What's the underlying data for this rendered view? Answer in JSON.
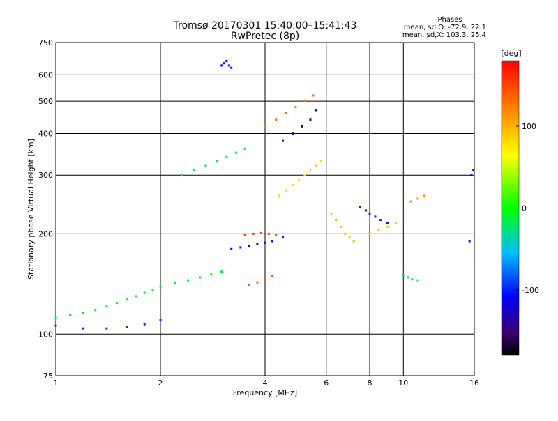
{
  "header": {
    "title_line1": "Tromsø 20170301 15:40:00–15:41:43",
    "title_line2": "RwPretec (8p)",
    "stats_heading": "Phases",
    "stats_line1": "mean, sd,O: -72.9, 22.1",
    "stats_line2": "mean, sd,X: 103.3, 25.4"
  },
  "chart_data": {
    "type": "scatter",
    "xlabel": "Frequency [MHz]",
    "ylabel": "Stationary phase Virtual Height [km]",
    "x_scale": "log",
    "y_scale": "log",
    "xlim": [
      1,
      16
    ],
    "ylim": [
      75,
      750
    ],
    "x_ticks": [
      1,
      2,
      4,
      6,
      8,
      10,
      16
    ],
    "y_ticks": [
      75,
      100,
      200,
      300,
      400,
      500,
      600,
      750
    ],
    "grid": true,
    "colorbar": {
      "label": "[deg]",
      "range": [
        -180,
        180
      ],
      "ticks": [
        100,
        0,
        -100
      ],
      "colormap": "rainbow"
    },
    "traces": [
      {
        "name": "",
        "phase": -10,
        "x": [
          1.0,
          1.1,
          1.2,
          1.3,
          1.4,
          1.5,
          1.6,
          1.7,
          1.8,
          1.9,
          2.0,
          2.2,
          2.4,
          2.6,
          2.8,
          3.0
        ],
        "y": [
          112,
          114,
          116,
          118,
          121,
          124,
          127,
          130,
          133,
          136,
          139,
          142,
          145,
          148,
          151,
          154
        ]
      },
      {
        "name": "",
        "phase": -95,
        "x": [
          1.0,
          1.2,
          1.4,
          1.6,
          1.8,
          2.0
        ],
        "y": [
          106,
          104,
          104,
          105,
          107,
          110
        ]
      },
      {
        "name": "",
        "phase": -20,
        "x": [
          2.3,
          2.5,
          2.7,
          2.9,
          3.1,
          3.3,
          3.5
        ],
        "y": [
          300,
          310,
          320,
          330,
          340,
          350,
          360
        ]
      },
      {
        "name": "",
        "phase": -110,
        "x": [
          3.0,
          3.05,
          3.1,
          3.15,
          3.2
        ],
        "y": [
          640,
          650,
          660,
          640,
          630
        ]
      },
      {
        "name": "",
        "phase": -105,
        "x": [
          3.2,
          3.4,
          3.6,
          3.8,
          4.0,
          4.2,
          4.5
        ],
        "y": [
          180,
          182,
          184,
          186,
          188,
          190,
          195
        ]
      },
      {
        "name": "",
        "phase": 150,
        "x": [
          3.5,
          3.7,
          3.9,
          4.1,
          4.3
        ],
        "y": [
          199,
          200,
          201,
          200,
          199
        ]
      },
      {
        "name": "",
        "phase": 130,
        "x": [
          4.0,
          4.3,
          4.6,
          4.9,
          5.2,
          5.5
        ],
        "y": [
          420,
          440,
          460,
          480,
          500,
          520
        ]
      },
      {
        "name": "",
        "phase": -135,
        "x": [
          4.5,
          4.8,
          5.1,
          5.4,
          5.6
        ],
        "y": [
          380,
          400,
          420,
          440,
          470
        ]
      },
      {
        "name": "",
        "phase": 80,
        "x": [
          4.4,
          4.6,
          4.8,
          5.0,
          5.2,
          5.4,
          5.6,
          5.8
        ],
        "y": [
          260,
          270,
          280,
          290,
          300,
          310,
          320,
          330
        ]
      },
      {
        "name": "",
        "phase": 140,
        "x": [
          3.6,
          3.8,
          4.0,
          4.2
        ],
        "y": [
          140,
          143,
          146,
          149
        ]
      },
      {
        "name": "",
        "phase": 95,
        "x": [
          6.2,
          6.4,
          6.6,
          6.8,
          7.0,
          7.2
        ],
        "y": [
          230,
          220,
          210,
          200,
          195,
          190
        ]
      },
      {
        "name": "",
        "phase": -100,
        "x": [
          7.5,
          7.8,
          8.0,
          8.3,
          8.6,
          9.0
        ],
        "y": [
          240,
          235,
          230,
          225,
          220,
          215
        ]
      },
      {
        "name": "",
        "phase": 90,
        "x": [
          8.0,
          8.5,
          9.0,
          9.5
        ],
        "y": [
          200,
          205,
          210,
          215
        ]
      },
      {
        "name": "",
        "phase": -15,
        "x": [
          10.0,
          10.3,
          10.6,
          11.0
        ],
        "y": [
          150,
          148,
          146,
          145
        ]
      },
      {
        "name": "",
        "phase": 120,
        "x": [
          10.5,
          11.0,
          11.5
        ],
        "y": [
          250,
          255,
          260
        ]
      },
      {
        "name": "",
        "phase": -105,
        "x": [
          15.5,
          15.7,
          15.9
        ],
        "y": [
          190,
          300,
          310
        ]
      }
    ]
  }
}
